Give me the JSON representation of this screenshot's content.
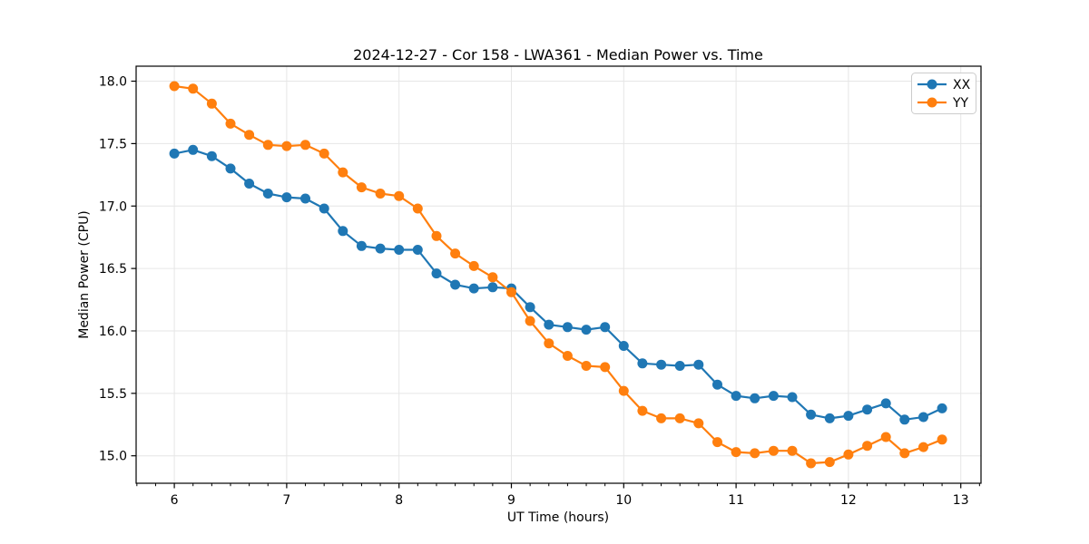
{
  "chart_data": {
    "type": "line",
    "title": "2024-12-27 - Cor 158 - LWA361 - Median Power vs. Time",
    "xlabel": "UT Time (hours)",
    "ylabel": "Median Power (CPU)",
    "xlim": [
      5.66,
      13.18
    ],
    "ylim": [
      14.78,
      18.12
    ],
    "x_major_ticks": [
      6,
      7,
      8,
      9,
      10,
      11,
      12,
      13
    ],
    "x_minor_tick_interval": 0.16667,
    "y_major_ticks": [
      15.0,
      15.5,
      16.0,
      16.5,
      17.0,
      17.5,
      18.0
    ],
    "grid": "major-only",
    "grid_color": "#e6e6e6",
    "background_color": "#ffffff",
    "spine_color": "#000000",
    "legend_position": "upper-right",
    "marker": "circle",
    "x": [
      6.0,
      6.1667,
      6.3333,
      6.5,
      6.6667,
      6.8333,
      7.0,
      7.1667,
      7.3333,
      7.5,
      7.6667,
      7.8333,
      8.0,
      8.1667,
      8.3333,
      8.5,
      8.6667,
      8.8333,
      9.0,
      9.1667,
      9.3333,
      9.5,
      9.6667,
      9.8333,
      10.0,
      10.1667,
      10.3333,
      10.5,
      10.6667,
      10.8333,
      11.0,
      11.1667,
      11.3333,
      11.5,
      11.6667,
      11.8333,
      12.0,
      12.1667,
      12.3333,
      12.5,
      12.6667,
      12.8333
    ],
    "series": [
      {
        "name": "XX",
        "color": "#1f77b4",
        "values": [
          17.42,
          17.45,
          17.4,
          17.3,
          17.18,
          17.1,
          17.07,
          17.06,
          16.98,
          16.8,
          16.68,
          16.66,
          16.65,
          16.65,
          16.46,
          16.37,
          16.34,
          16.35,
          16.34,
          16.19,
          16.05,
          16.03,
          16.01,
          16.03,
          15.88,
          15.74,
          15.73,
          15.72,
          15.73,
          15.57,
          15.48,
          15.46,
          15.48,
          15.47,
          15.33,
          15.3,
          15.32,
          15.37,
          15.42,
          15.29,
          15.31,
          15.38
        ]
      },
      {
        "name": "YY",
        "color": "#ff7f0e",
        "values": [
          17.96,
          17.94,
          17.82,
          17.66,
          17.57,
          17.49,
          17.48,
          17.49,
          17.42,
          17.27,
          17.15,
          17.1,
          17.08,
          16.98,
          16.76,
          16.62,
          16.52,
          16.43,
          16.31,
          16.08,
          15.9,
          15.8,
          15.72,
          15.71,
          15.52,
          15.36,
          15.3,
          15.3,
          15.26,
          15.11,
          15.03,
          15.02,
          15.04,
          15.04,
          14.94,
          14.95,
          15.01,
          15.08,
          15.15,
          15.02,
          15.07,
          15.13
        ]
      }
    ]
  }
}
